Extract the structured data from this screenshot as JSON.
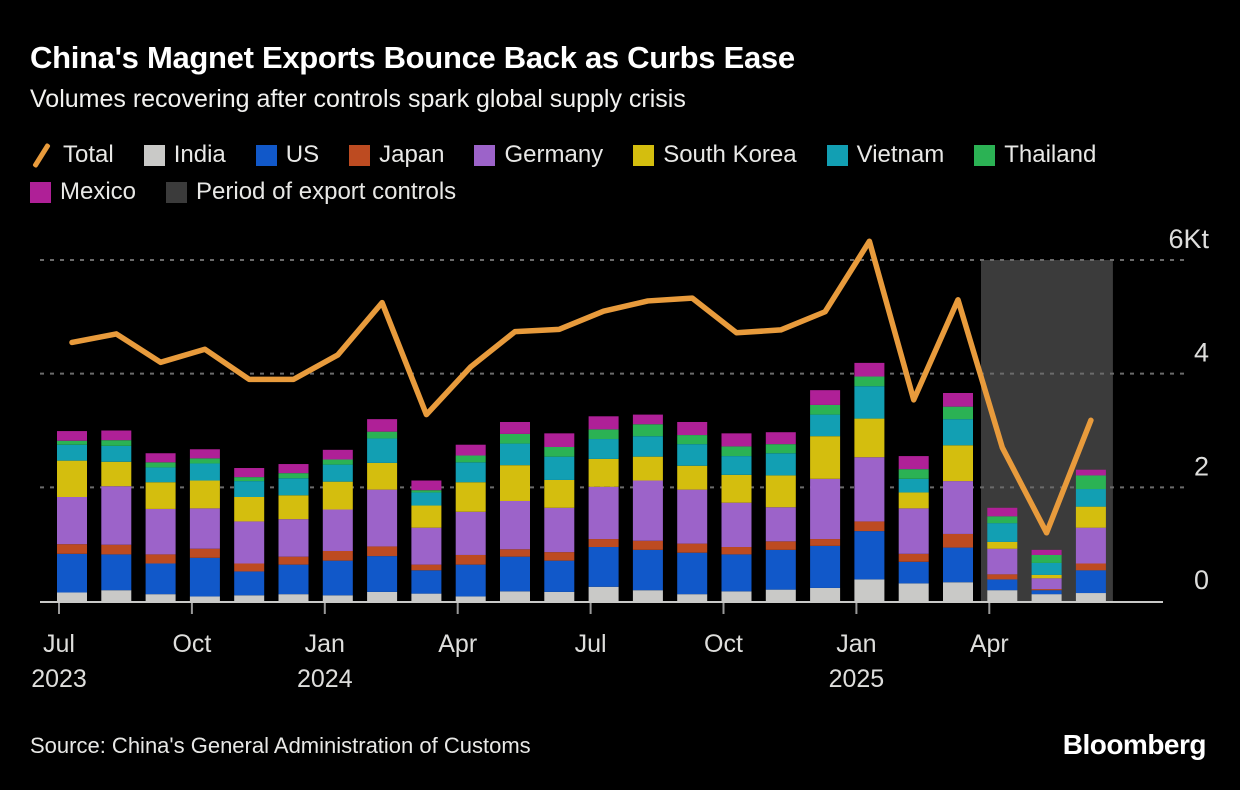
{
  "header": {
    "title": "China's Magnet Exports Bounce Back as Curbs Ease",
    "subtitle": "Volumes recovering after controls spark global supply crisis"
  },
  "legend": {
    "items": [
      {
        "label": "Total",
        "type": "line",
        "color": "#E89B3C"
      },
      {
        "label": "India",
        "type": "box",
        "color": "#C9C9C7"
      },
      {
        "label": "US",
        "type": "box",
        "color": "#1158C9"
      },
      {
        "label": "Japan",
        "type": "box",
        "color": "#BD4B21"
      },
      {
        "label": "Germany",
        "type": "box",
        "color": "#9C63C9"
      },
      {
        "label": "South Korea",
        "type": "box",
        "color": "#D4BE0E"
      },
      {
        "label": "Vietnam",
        "type": "box",
        "color": "#129FB3"
      },
      {
        "label": "Thailand",
        "type": "box",
        "color": "#2BB254"
      },
      {
        "label": "Mexico",
        "type": "box",
        "color": "#AF2097"
      },
      {
        "label": "Period of export controls",
        "type": "box",
        "color": "#3B3B3B"
      }
    ]
  },
  "chart_data": {
    "type": "bar",
    "subtype": "stacked-bars-with-line",
    "title": "China's Magnet Exports Bounce Back as Curbs Ease",
    "unit": "Kt",
    "ylim": [
      0,
      6.5
    ],
    "grid": "dashed-horizontal",
    "legend_position": "top",
    "categories": [
      "Jul 2023",
      "Aug 2023",
      "Sep 2023",
      "Oct 2023",
      "Nov 2023",
      "Dec 2023",
      "Jan 2024",
      "Feb 2024",
      "Mar 2024",
      "Apr 2024",
      "May 2024",
      "Jun 2024",
      "Jul 2024",
      "Aug 2024",
      "Sep 2024",
      "Oct 2024",
      "Nov 2024",
      "Dec 2024",
      "Jan 2025",
      "Feb 2025",
      "Mar 2025",
      "Apr 2025",
      "May 2025",
      "Jun 2025"
    ],
    "stacked_series": [
      {
        "name": "India",
        "color": "#C9C9C7",
        "values": [
          0.15,
          0.19,
          0.12,
          0.08,
          0.1,
          0.12,
          0.1,
          0.16,
          0.13,
          0.08,
          0.17,
          0.16,
          0.25,
          0.19,
          0.12,
          0.17,
          0.2,
          0.23,
          0.38,
          0.31,
          0.33,
          0.19,
          0.12,
          0.14
        ]
      },
      {
        "name": "US",
        "color": "#1158C9",
        "values": [
          0.68,
          0.63,
          0.54,
          0.68,
          0.42,
          0.52,
          0.61,
          0.63,
          0.41,
          0.56,
          0.61,
          0.55,
          0.7,
          0.71,
          0.73,
          0.65,
          0.7,
          0.74,
          0.85,
          0.38,
          0.61,
          0.19,
          0.07,
          0.4
        ]
      },
      {
        "name": "Japan",
        "color": "#BD4B21",
        "values": [
          0.17,
          0.17,
          0.16,
          0.16,
          0.14,
          0.14,
          0.17,
          0.17,
          0.1,
          0.17,
          0.13,
          0.15,
          0.14,
          0.16,
          0.16,
          0.13,
          0.15,
          0.12,
          0.17,
          0.14,
          0.24,
          0.09,
          0.02,
          0.12
        ]
      },
      {
        "name": "Germany",
        "color": "#9C63C9",
        "values": [
          0.83,
          1.03,
          0.8,
          0.71,
          0.74,
          0.66,
          0.73,
          1.0,
          0.65,
          0.76,
          0.85,
          0.78,
          0.92,
          1.06,
          0.95,
          0.78,
          0.6,
          1.06,
          1.13,
          0.8,
          0.93,
          0.45,
          0.19,
          0.63
        ]
      },
      {
        "name": "South Korea",
        "color": "#D4BE0E",
        "values": [
          0.64,
          0.43,
          0.47,
          0.49,
          0.43,
          0.42,
          0.49,
          0.47,
          0.39,
          0.52,
          0.63,
          0.49,
          0.49,
          0.42,
          0.42,
          0.49,
          0.56,
          0.75,
          0.68,
          0.28,
          0.63,
          0.12,
          0.06,
          0.37
        ]
      },
      {
        "name": "Vietnam",
        "color": "#129FB3",
        "values": [
          0.28,
          0.28,
          0.26,
          0.3,
          0.28,
          0.3,
          0.3,
          0.43,
          0.23,
          0.35,
          0.38,
          0.41,
          0.35,
          0.36,
          0.38,
          0.33,
          0.39,
          0.38,
          0.57,
          0.24,
          0.46,
          0.33,
          0.21,
          0.31
        ]
      },
      {
        "name": "Thailand",
        "color": "#2BB254",
        "values": [
          0.07,
          0.1,
          0.09,
          0.09,
          0.07,
          0.09,
          0.09,
          0.12,
          0.04,
          0.12,
          0.17,
          0.17,
          0.17,
          0.21,
          0.16,
          0.17,
          0.16,
          0.17,
          0.17,
          0.17,
          0.22,
          0.12,
          0.14,
          0.24
        ]
      },
      {
        "name": "Mexico",
        "color": "#AF2097",
        "values": [
          0.17,
          0.17,
          0.16,
          0.16,
          0.16,
          0.16,
          0.17,
          0.22,
          0.17,
          0.19,
          0.21,
          0.24,
          0.23,
          0.17,
          0.23,
          0.23,
          0.21,
          0.26,
          0.24,
          0.23,
          0.24,
          0.15,
          0.09,
          0.1
        ]
      }
    ],
    "line_series": {
      "name": "Total",
      "color": "#E89B3C",
      "values": [
        4.55,
        4.7,
        4.2,
        4.43,
        3.9,
        3.9,
        4.33,
        5.25,
        3.28,
        4.12,
        4.74,
        4.78,
        5.1,
        5.28,
        5.33,
        4.72,
        4.77,
        5.09,
        6.33,
        3.54,
        5.3,
        2.7,
        1.2,
        3.18
      ]
    },
    "annotation_band": {
      "label": "Period of export controls",
      "from": "Apr 2025",
      "to": "Jun 2025",
      "color": "#3B3B3B",
      "start_index": 21,
      "end_index": 23
    },
    "y_axis": {
      "side": "right",
      "ticks": [
        0,
        2,
        4,
        6
      ],
      "tick_labels": [
        "0",
        "2",
        "4",
        "6Kt"
      ],
      "gridline_color": "#6B6B6B",
      "baseline_color": "#C9C9C7",
      "label_color": "#DEDEDC"
    },
    "x_axis": {
      "tick_indices": [
        0,
        3,
        6,
        9,
        12,
        15,
        18,
        21
      ],
      "tick_labels": [
        [
          "Jul",
          "2023"
        ],
        [
          "Oct"
        ],
        [
          "Jan",
          "2024"
        ],
        [
          "Apr"
        ],
        [
          "Jul"
        ],
        [
          "Oct"
        ],
        [
          "Jan",
          "2025"
        ],
        [
          "Apr"
        ]
      ],
      "tick_color": "#999999",
      "label_color": "#DEDEDC"
    }
  },
  "footer": {
    "source": "Source: China's General Administration of Customs",
    "brand": "Bloomberg"
  }
}
